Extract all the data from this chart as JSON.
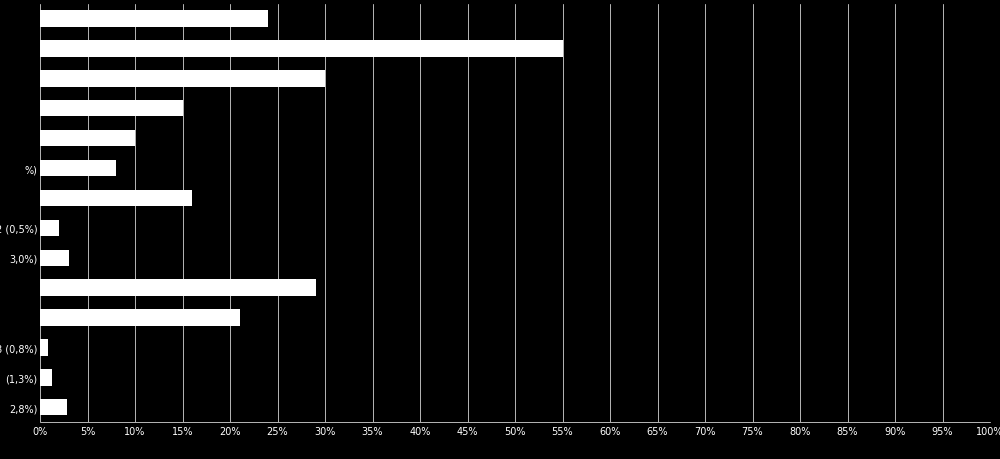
{
  "categories": [
    "",
    "",
    "",
    "",
    "",
    "%)",
    "",
    "2 (0,5%)",
    "3,0%)",
    "",
    "",
    "8 (0,8%)",
    "(1,3%)",
    "2,8%)"
  ],
  "values": [
    24.0,
    55.0,
    30.0,
    15.0,
    10.0,
    8.0,
    16.0,
    2.0,
    3.0,
    29.0,
    21.0,
    0.8,
    1.3,
    2.8
  ],
  "background_color": "#000000",
  "bar_color": "#ffffff",
  "text_color": "#ffffff",
  "grid_color": "#ffffff",
  "xlim": [
    0,
    100
  ],
  "xticks": [
    0,
    5,
    10,
    15,
    20,
    25,
    30,
    35,
    40,
    45,
    50,
    55,
    60,
    65,
    70,
    75,
    80,
    85,
    90,
    95,
    100
  ]
}
